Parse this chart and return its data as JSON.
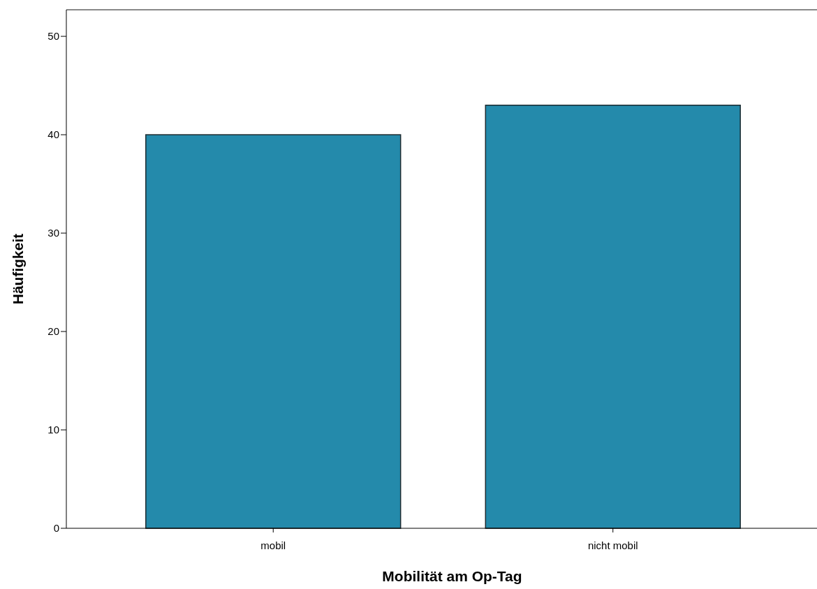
{
  "chart_data": {
    "type": "bar",
    "xlabel": "Mobilität am Op-Tag",
    "ylabel": "Häufigkeit",
    "categories": [
      "mobil",
      "nicht mobil"
    ],
    "values": [
      40,
      43
    ],
    "color": "#248aab",
    "ylim": [
      0,
      52.7
    ],
    "yticks": [
      0,
      10,
      20,
      30,
      40,
      50
    ],
    "grid": false
  }
}
